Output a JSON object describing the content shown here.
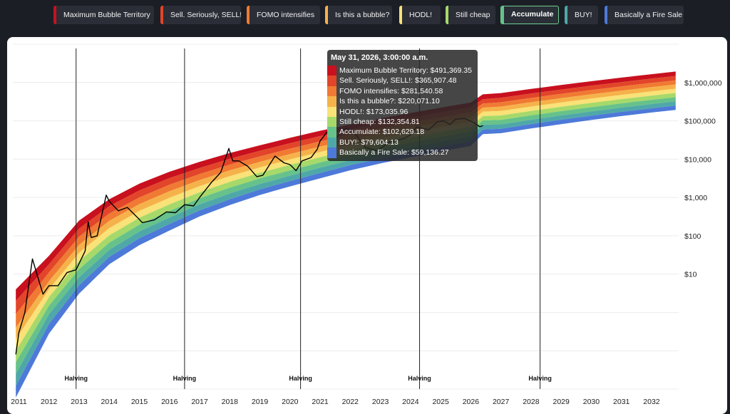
{
  "legend": [
    {
      "label": "Maximum Bubble Territory",
      "color": "#c8101e",
      "active": false
    },
    {
      "label": "Sell. Seriously, SELL!",
      "color": "#e2452a",
      "active": false
    },
    {
      "label": "FOMO intensifies",
      "color": "#f07a33",
      "active": false
    },
    {
      "label": "Is this a bubble?",
      "color": "#f6b24a",
      "active": false
    },
    {
      "label": "HODL!",
      "color": "#f9e277",
      "active": false
    },
    {
      "label": "Still cheap",
      "color": "#a6d96a",
      "active": false
    },
    {
      "label": "Accumulate",
      "color": "#66c28a",
      "active": true
    },
    {
      "label": "BUY!",
      "color": "#4fa8a8",
      "active": false
    },
    {
      "label": "Basically a Fire Sale",
      "color": "#4d79d8",
      "active": false
    }
  ],
  "tooltip": {
    "title": "May 31, 2026, 3:00:00 a.m.",
    "rows": [
      {
        "text": "Maximum Bubble Territory: $491,369.35",
        "color": "#c8101e"
      },
      {
        "text": "Sell. Seriously, SELL!: $365,907.48",
        "color": "#e2452a"
      },
      {
        "text": "FOMO intensifies: $281,540.58",
        "color": "#f07a33"
      },
      {
        "text": "Is this a bubble?: $220,071.10",
        "color": "#f6b24a"
      },
      {
        "text": "HODL!: $173,035.96",
        "color": "#f9e277"
      },
      {
        "text": "Still cheap: $132,354.81",
        "color": "#a6d96a"
      },
      {
        "text": "Accumulate: $102,629.18",
        "color": "#66c28a"
      },
      {
        "text": "BUY!: $79,604.13",
        "color": "#4fa8a8"
      },
      {
        "text": "Basically a Fire Sale: $59,136.27",
        "color": "#4d79d8"
      }
    ]
  },
  "chart_data": {
    "type": "area",
    "x_ticks": [
      "2011",
      "2012",
      "2013",
      "2014",
      "2015",
      "2016",
      "2017",
      "2018",
      "2019",
      "2020",
      "2021",
      "2022",
      "2023",
      "2024",
      "2025",
      "2026",
      "2027",
      "2028",
      "2029",
      "2030",
      "2031",
      "2032"
    ],
    "y_ticks": [
      "$10",
      "$100",
      "$1,000",
      "$10,000",
      "$100,000",
      "$1,000,000"
    ],
    "y_scale": "log",
    "y_range": [
      0.01,
      10000000
    ],
    "x_range": [
      2010.8,
      2032.9
    ],
    "legend_placement": "top",
    "bands": [
      {
        "name": "Maximum Bubble Territory",
        "color": "#c8101e"
      },
      {
        "name": "Sell. Seriously, SELL!",
        "color": "#e2452a"
      },
      {
        "name": "FOMO intensifies",
        "color": "#f07a33"
      },
      {
        "name": "Is this a bubble?",
        "color": "#f6b24a"
      },
      {
        "name": "HODL!",
        "color": "#f9e277"
      },
      {
        "name": "Still cheap",
        "color": "#a6d96a"
      },
      {
        "name": "Accumulate",
        "color": "#66c28a"
      },
      {
        "name": "BUY!",
        "color": "#4fa8a8"
      },
      {
        "name": "Basically a Fire Sale",
        "color": "#4d79d8"
      }
    ],
    "band_boundaries": [
      {
        "year": 2010.9,
        "values": [
          4.0,
          2.0,
          0.9,
          0.4,
          0.2,
          0.1,
          0.05,
          0.025,
          0.012,
          0.006
        ]
      },
      {
        "year": 2012.0,
        "values": [
          30,
          18,
          11,
          6.5,
          4,
          2.5,
          1.5,
          0.9,
          0.5,
          0.28
        ]
      },
      {
        "year": 2013.0,
        "values": [
          250,
          155,
          95,
          58,
          36,
          22,
          13.5,
          8.3,
          5.1,
          3.1
        ]
      },
      {
        "year": 2014.0,
        "values": [
          900,
          590,
          380,
          245,
          158,
          102,
          66,
          43,
          28,
          18
        ]
      },
      {
        "year": 2015.0,
        "values": [
          2300,
          1520,
          1000,
          670,
          445,
          295,
          196,
          130,
          86,
          57
        ]
      },
      {
        "year": 2016.0,
        "values": [
          4700,
          3200,
          2150,
          1450,
          980,
          660,
          445,
          300,
          203,
          137
        ]
      },
      {
        "year": 2017.0,
        "values": [
          8500,
          5900,
          4100,
          2850,
          1980,
          1370,
          950,
          660,
          460,
          320
        ]
      },
      {
        "year": 2018.0,
        "values": [
          14500,
          10200,
          7200,
          5100,
          3600,
          2550,
          1800,
          1270,
          900,
          635
        ]
      },
      {
        "year": 2019.0,
        "values": [
          23000,
          16500,
          11800,
          8500,
          6100,
          4400,
          3150,
          2260,
          1620,
          1160
        ]
      },
      {
        "year": 2020.0,
        "values": [
          36000,
          26000,
          18800,
          13600,
          9800,
          7100,
          5100,
          3700,
          2680,
          1940
        ]
      },
      {
        "year": 2021.0,
        "values": [
          55000,
          40000,
          29000,
          21200,
          15400,
          11200,
          8200,
          6000,
          4350,
          3170
        ]
      },
      {
        "year": 2022.0,
        "values": [
          80000,
          59000,
          43500,
          32000,
          23600,
          17400,
          12800,
          9450,
          6950,
          5120
        ]
      },
      {
        "year": 2023.0,
        "values": [
          115000,
          85000,
          63000,
          46500,
          34500,
          25500,
          18900,
          14000,
          10400,
          7700
        ]
      },
      {
        "year": 2024.0,
        "values": [
          160000,
          120000,
          89000,
          66000,
          49000,
          36500,
          27200,
          20200,
          15000,
          11200
        ]
      },
      {
        "year": 2025.0,
        "values": [
          220000,
          165000,
          123000,
          92000,
          68500,
          51000,
          38000,
          28500,
          21200,
          15800
        ]
      },
      {
        "year": 2026.0,
        "values": [
          300000,
          225000,
          168000,
          126000,
          94000,
          70500,
          52800,
          39500,
          29600,
          22100
        ]
      },
      {
        "year": 2026.4,
        "values": [
          491369.35,
          365907.48,
          281540.58,
          220071.1,
          173035.96,
          132354.81,
          102629.18,
          79604.13,
          59136.27,
          45000
        ]
      },
      {
        "year": 2027.0,
        "values": [
          530000,
          400000,
          305000,
          235000,
          180000,
          138000,
          106000,
          81000,
          62000,
          47500
        ]
      },
      {
        "year": 2028.0,
        "values": [
          680000,
          515000,
          395000,
          305000,
          235000,
          180000,
          139000,
          107000,
          82000,
          63000
        ]
      },
      {
        "year": 2029.0,
        "values": [
          860000,
          655000,
          505000,
          390000,
          300000,
          232000,
          179000,
          138000,
          107000,
          82000
        ]
      },
      {
        "year": 2030.0,
        "values": [
          1080000,
          825000,
          635000,
          490000,
          380000,
          294000,
          227000,
          176000,
          136000,
          105000
        ]
      },
      {
        "year": 2031.0,
        "values": [
          1340000,
          1025000,
          790000,
          612000,
          475000,
          368000,
          285000,
          221000,
          171000,
          133000
        ]
      },
      {
        "year": 2032.0,
        "values": [
          1650000,
          1265000,
          975000,
          755000,
          586000,
          455000,
          353000,
          274000,
          212000,
          165000
        ]
      },
      {
        "year": 2032.8,
        "values": [
          1930000,
          1480000,
          1140000,
          885000,
          687000,
          533000,
          414000,
          321000,
          249000,
          193000
        ]
      }
    ],
    "price_series": [
      [
        2010.9,
        0.08
      ],
      [
        2011.0,
        0.3
      ],
      [
        2011.2,
        1.0
      ],
      [
        2011.45,
        25
      ],
      [
        2011.6,
        10
      ],
      [
        2011.8,
        3
      ],
      [
        2012.0,
        5
      ],
      [
        2012.3,
        5
      ],
      [
        2012.6,
        11
      ],
      [
        2012.9,
        13
      ],
      [
        2013.2,
        40
      ],
      [
        2013.3,
        230
      ],
      [
        2013.4,
        90
      ],
      [
        2013.6,
        100
      ],
      [
        2013.9,
        1150
      ],
      [
        2014.0,
        800
      ],
      [
        2014.3,
        450
      ],
      [
        2014.6,
        550
      ],
      [
        2014.9,
        320
      ],
      [
        2015.1,
        220
      ],
      [
        2015.5,
        260
      ],
      [
        2015.9,
        420
      ],
      [
        2016.2,
        400
      ],
      [
        2016.5,
        650
      ],
      [
        2016.8,
        600
      ],
      [
        2017.0,
        1000
      ],
      [
        2017.4,
        2500
      ],
      [
        2017.7,
        4500
      ],
      [
        2017.97,
        19000
      ],
      [
        2018.1,
        9000
      ],
      [
        2018.3,
        9000
      ],
      [
        2018.6,
        6500
      ],
      [
        2018.9,
        3500
      ],
      [
        2019.1,
        3800
      ],
      [
        2019.5,
        12000
      ],
      [
        2019.8,
        8000
      ],
      [
        2020.0,
        7200
      ],
      [
        2020.2,
        5000
      ],
      [
        2020.4,
        9000
      ],
      [
        2020.7,
        11000
      ],
      [
        2020.9,
        18000
      ],
      [
        2021.0,
        30000
      ],
      [
        2021.3,
        60000
      ],
      [
        2021.5,
        33000
      ],
      [
        2021.85,
        65000
      ],
      [
        2022.2,
        42000
      ],
      [
        2022.5,
        20000
      ],
      [
        2022.9,
        16500
      ],
      [
        2023.3,
        28000
      ],
      [
        2023.8,
        35000
      ],
      [
        2024.0,
        43000
      ],
      [
        2024.2,
        70000
      ],
      [
        2024.6,
        58000
      ],
      [
        2024.9,
        95000
      ],
      [
        2025.1,
        100000
      ],
      [
        2025.3,
        80000
      ],
      [
        2025.5,
        110000
      ],
      [
        2025.8,
        115000
      ],
      [
        2026.1,
        90000
      ],
      [
        2026.3,
        70000
      ],
      [
        2026.4,
        75000
      ]
    ],
    "halvings": [
      {
        "year": 2012.9,
        "label": "Halving"
      },
      {
        "year": 2016.5,
        "label": "Halving"
      },
      {
        "year": 2020.35,
        "label": "Halving"
      },
      {
        "year": 2024.3,
        "label": "Halving"
      },
      {
        "year": 2028.3,
        "label": "Halving"
      }
    ]
  }
}
